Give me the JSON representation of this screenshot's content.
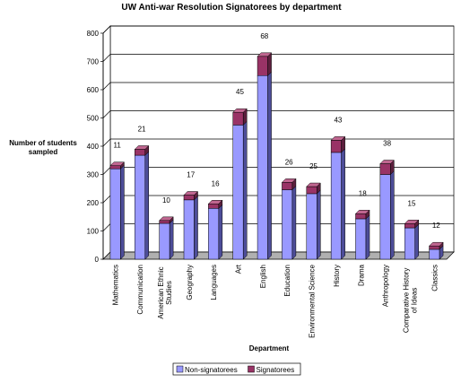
{
  "chart_data": {
    "type": "bar",
    "stacked": true,
    "three_d": true,
    "title": "UW Anti-war Resolution Signatorees by department",
    "ylabel": "Number of students sampled",
    "xlabel": "Department",
    "ylim": [
      0,
      800
    ],
    "yticks": [
      "0",
      "100",
      "200",
      "300",
      "400",
      "500",
      "600",
      "700",
      "800"
    ],
    "categories": [
      "Mathematics",
      "Communication",
      "American Ethnic Studies",
      "Geography",
      "Languages",
      "Art",
      "English",
      "Education",
      "Environmental Science",
      "History",
      "Drama",
      "Anthropology",
      "Comparative History of Ideas",
      "Classics"
    ],
    "series": [
      {
        "name": "Non-signatorees",
        "values": [
          320,
          368,
          127,
          210,
          180,
          475,
          650,
          246,
          232,
          378,
          143,
          300,
          111,
          35
        ]
      },
      {
        "name": "Signatorees",
        "values": [
          11,
          21,
          10,
          17,
          16,
          45,
          68,
          26,
          25,
          43,
          18,
          38,
          15,
          12
        ]
      }
    ],
    "data_labels": [
      "11",
      "21",
      "10",
      "17",
      "16",
      "45",
      "68",
      "26",
      "25",
      "43",
      "18",
      "38",
      "15",
      "12"
    ],
    "grid": true,
    "legend_position": "bottom",
    "colors": {
      "non_signatorees": "#9999ff",
      "signatorees": "#993366",
      "floor": "#b0b0b0",
      "wall": "#ffffff",
      "grid": "#000000"
    }
  }
}
